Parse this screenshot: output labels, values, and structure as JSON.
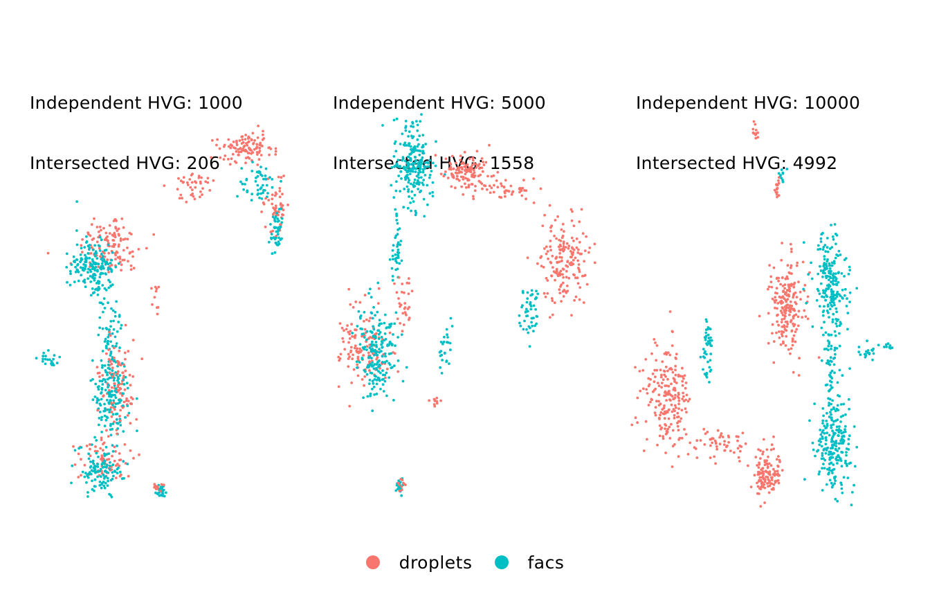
{
  "chart_data": [
    {
      "type": "scatter",
      "title_lines": [
        "Independent HVG: 1000",
        "Intersected HVG: 206"
      ],
      "xlabel": "",
      "ylabel": "",
      "axes": false,
      "grid": false,
      "clusters": [
        {
          "series": "droplets",
          "cx": 160,
          "cy": 355,
          "sx": 32,
          "sy": 32,
          "n": 120
        },
        {
          "series": "facs",
          "cx": 135,
          "cy": 385,
          "sx": 22,
          "sy": 32,
          "n": 180
        },
        {
          "series": "facs",
          "cx": 160,
          "cy": 500,
          "sx": 12,
          "sy": 50,
          "n": 80
        },
        {
          "series": "droplets",
          "cx": 170,
          "cy": 550,
          "sx": 18,
          "sy": 40,
          "n": 110
        },
        {
          "series": "facs",
          "cx": 160,
          "cy": 580,
          "sx": 18,
          "sy": 45,
          "n": 130
        },
        {
          "series": "droplets",
          "cx": 150,
          "cy": 660,
          "sx": 25,
          "sy": 25,
          "n": 70
        },
        {
          "series": "facs",
          "cx": 145,
          "cy": 680,
          "sx": 25,
          "sy": 22,
          "n": 110
        },
        {
          "series": "droplets",
          "cx": 355,
          "cy": 215,
          "sx": 28,
          "sy": 18,
          "n": 110
        },
        {
          "series": "facs",
          "cx": 375,
          "cy": 265,
          "sx": 20,
          "sy": 20,
          "n": 50
        },
        {
          "series": "droplets",
          "cx": 400,
          "cy": 300,
          "sx": 10,
          "sy": 35,
          "n": 50
        },
        {
          "series": "facs",
          "cx": 400,
          "cy": 330,
          "sx": 8,
          "sy": 25,
          "n": 45
        },
        {
          "series": "droplets",
          "cx": 280,
          "cy": 270,
          "sx": 25,
          "sy": 15,
          "n": 40
        },
        {
          "series": "facs",
          "cx": 75,
          "cy": 518,
          "sx": 12,
          "sy": 8,
          "n": 20
        },
        {
          "series": "droplets",
          "cx": 225,
          "cy": 430,
          "sx": 5,
          "sy": 20,
          "n": 10
        },
        {
          "series": "facs",
          "cx": 232,
          "cy": 710,
          "sx": 7,
          "sy": 7,
          "n": 25
        },
        {
          "series": "droplets",
          "cx": 230,
          "cy": 705,
          "sx": 6,
          "sy": 6,
          "n": 10
        }
      ]
    },
    {
      "type": "scatter",
      "title_lines": [
        "Independent HVG: 5000",
        "Intersected HVG: 1558"
      ],
      "xlabel": "",
      "ylabel": "",
      "axes": false,
      "grid": false,
      "clusters": [
        {
          "series": "facs",
          "cx": 598,
          "cy": 240,
          "sx": 20,
          "sy": 40,
          "n": 220
        },
        {
          "series": "facs",
          "cx": 573,
          "cy": 360,
          "sx": 6,
          "sy": 35,
          "n": 40
        },
        {
          "series": "droplets",
          "cx": 675,
          "cy": 250,
          "sx": 22,
          "sy": 20,
          "n": 130
        },
        {
          "series": "droplets",
          "cx": 740,
          "cy": 272,
          "sx": 30,
          "sy": 12,
          "n": 40
        },
        {
          "series": "droplets",
          "cx": 815,
          "cy": 380,
          "sx": 25,
          "sy": 45,
          "n": 170
        },
        {
          "series": "facs",
          "cx": 765,
          "cy": 450,
          "sx": 10,
          "sy": 25,
          "n": 50
        },
        {
          "series": "droplets",
          "cx": 525,
          "cy": 500,
          "sx": 25,
          "sy": 45,
          "n": 130
        },
        {
          "series": "facs",
          "cx": 545,
          "cy": 510,
          "sx": 22,
          "sy": 50,
          "n": 190
        },
        {
          "series": "droplets",
          "cx": 585,
          "cy": 440,
          "sx": 8,
          "sy": 25,
          "n": 30
        },
        {
          "series": "facs",
          "cx": 645,
          "cy": 505,
          "sx": 8,
          "sy": 25,
          "n": 25
        },
        {
          "series": "droplets",
          "cx": 630,
          "cy": 580,
          "sx": 6,
          "sy": 6,
          "n": 10
        },
        {
          "series": "facs",
          "cx": 578,
          "cy": 705,
          "sx": 5,
          "sy": 10,
          "n": 20
        },
        {
          "series": "droplets",
          "cx": 580,
          "cy": 700,
          "sx": 4,
          "sy": 8,
          "n": 10
        }
      ]
    },
    {
      "type": "scatter",
      "title_lines": [
        "Independent HVG: 10000",
        "Intersected HVG: 4992"
      ],
      "xlabel": "",
      "ylabel": "",
      "axes": false,
      "grid": false,
      "clusters": [
        {
          "series": "droplets",
          "cx": 1092,
          "cy": 190,
          "sx": 3,
          "sy": 10,
          "n": 12
        },
        {
          "series": "facs",
          "cx": 1130,
          "cy": 250,
          "sx": 4,
          "sy": 10,
          "n": 10
        },
        {
          "series": "droplets",
          "cx": 1122,
          "cy": 272,
          "sx": 5,
          "sy": 12,
          "n": 15
        },
        {
          "series": "droplets",
          "cx": 1138,
          "cy": 440,
          "sx": 18,
          "sy": 50,
          "n": 200
        },
        {
          "series": "facs",
          "cx": 1200,
          "cy": 410,
          "sx": 18,
          "sy": 50,
          "n": 200
        },
        {
          "series": "facs",
          "cx": 1200,
          "cy": 520,
          "sx": 8,
          "sy": 40,
          "n": 50
        },
        {
          "series": "facs",
          "cx": 1205,
          "cy": 640,
          "sx": 20,
          "sy": 45,
          "n": 220
        },
        {
          "series": "facs",
          "cx": 1022,
          "cy": 500,
          "sx": 6,
          "sy": 30,
          "n": 45
        },
        {
          "series": "droplets",
          "cx": 965,
          "cy": 570,
          "sx": 25,
          "sy": 50,
          "n": 200
        },
        {
          "series": "droplets",
          "cx": 1040,
          "cy": 640,
          "sx": 35,
          "sy": 15,
          "n": 60
        },
        {
          "series": "droplets",
          "cx": 1108,
          "cy": 685,
          "sx": 14,
          "sy": 22,
          "n": 120
        },
        {
          "series": "facs",
          "cx": 1255,
          "cy": 510,
          "sx": 8,
          "sy": 8,
          "n": 20
        },
        {
          "series": "facs",
          "cx": 1285,
          "cy": 500,
          "sx": 4,
          "sy": 4,
          "n": 8
        }
      ]
    }
  ],
  "legend": {
    "position": "bottom",
    "items": [
      {
        "label": "droplets",
        "color": "#F8766D"
      },
      {
        "label": "facs",
        "color": "#00BFC4"
      }
    ]
  }
}
